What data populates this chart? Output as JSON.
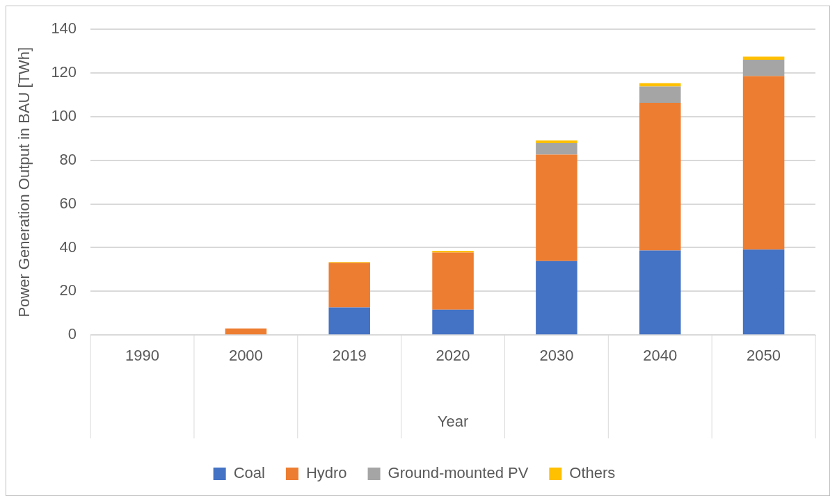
{
  "chart_data": {
    "type": "bar",
    "stacked": true,
    "xlabel": "Year",
    "ylabel": "Power Generation Output in BAU [TWh]",
    "categories": [
      "1990",
      "2000",
      "2019",
      "2020",
      "2030",
      "2040",
      "2050"
    ],
    "series": [
      {
        "name": "Coal",
        "color": "#4472c4",
        "values": [
          0,
          0,
          12.6,
          11.6,
          33.9,
          38.7,
          39.1
        ]
      },
      {
        "name": "Hydro",
        "color": "#ed7d31",
        "values": [
          0,
          3.0,
          20.5,
          26.2,
          48.7,
          67.6,
          79.5
        ]
      },
      {
        "name": "Ground-mounted PV",
        "color": "#a5a5a5",
        "values": [
          0,
          0,
          0,
          0,
          5.3,
          7.5,
          7.5
        ]
      },
      {
        "name": "Others",
        "color": "#ffc000",
        "values": [
          0,
          0,
          0.3,
          0.8,
          1.2,
          1.5,
          1.4
        ]
      }
    ],
    "ylim": [
      0,
      140
    ],
    "yticks": [
      0,
      20,
      40,
      60,
      80,
      100,
      120,
      140
    ],
    "grid": "y",
    "legend": "bottom"
  }
}
